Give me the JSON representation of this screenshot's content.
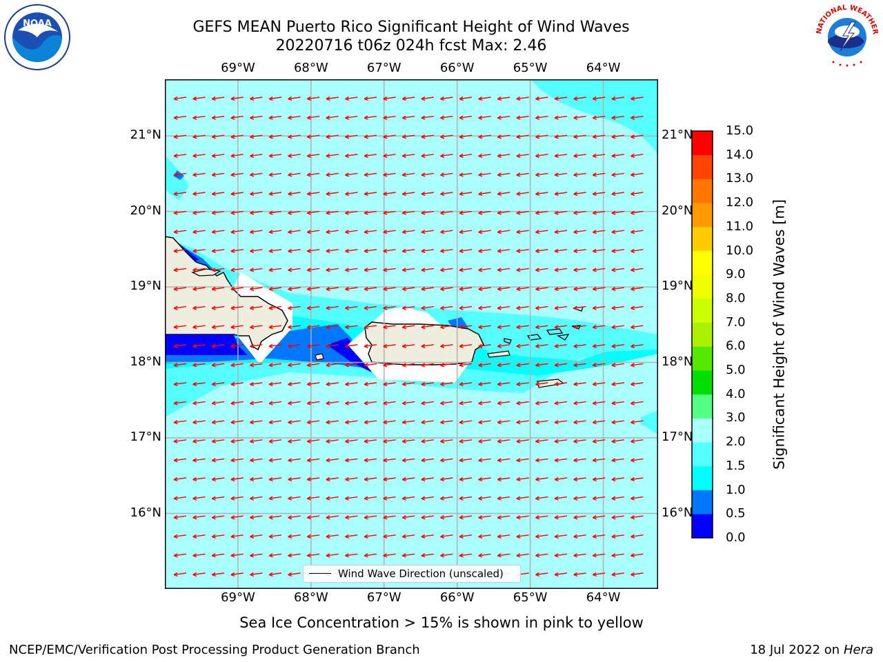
{
  "title_line1": "GEFS MEAN Puerto Rico Significant Height of Wind Waves",
  "title_line2": "20220716 t06z 024h fcst   Max: 2.46",
  "map": {
    "lon_range": [
      -70.0,
      -63.25
    ],
    "lat_range": [
      15.0,
      21.75
    ],
    "lon_labels": [
      "69°W",
      "68°W",
      "67°W",
      "66°W",
      "65°W",
      "64°W"
    ],
    "lon_values": [
      -69,
      -68,
      -67,
      -66,
      -65,
      -64
    ],
    "lat_labels": [
      "16°N",
      "17°N",
      "18°N",
      "19°N",
      "20°N",
      "21°N"
    ],
    "lat_values": [
      16,
      17,
      18,
      19,
      20,
      21
    ],
    "grid": true,
    "arrow_direction": "east-to-west",
    "arrow_color": "#ff0000",
    "land_color": "#efeddd",
    "ocean_fill_colors": [
      "#aaffff",
      "#55ffff",
      "#00ffff",
      "#0077ff",
      "#0000ff"
    ]
  },
  "legend": {
    "label": "Wind Wave Direction (unscaled)",
    "position": "bottom-center"
  },
  "colorbar": {
    "label": "Significant Height of Wind Waves [m]",
    "ticks": [
      "0.0",
      "0.5",
      "1.0",
      "1.5",
      "2.0",
      "3.0",
      "4.0",
      "5.0",
      "6.0",
      "7.0",
      "8.0",
      "9.0",
      "10.0",
      "11.0",
      "12.0",
      "13.0",
      "14.0",
      "15.0"
    ],
    "colors": [
      "#0000ff",
      "#0077ff",
      "#00ffff",
      "#55ffff",
      "#aaffff",
      "#55ff80",
      "#00dd00",
      "#55e800",
      "#aaf000",
      "#ccff00",
      "#eeff00",
      "#ffff00",
      "#ffcc00",
      "#ff9900",
      "#ff7700",
      "#ff4400",
      "#ff0000"
    ]
  },
  "subnote": "Sea Ice Concentration > 15% is shown in pink to yellow",
  "footer_left": "NCEP/EMC/Verification Post Processing Product Generation Branch",
  "footer_right_date": "18 Jul 2022 on ",
  "footer_right_host": "Hera",
  "logos": {
    "left": "noaa-logo",
    "right": "national-weather-service-logo",
    "left_seal_text": "NATIONAL OCEANIC AND ATMOSPHERIC ADMINISTRATION U.S. DEPARTMENT OF COMMERCE",
    "left_mark": "NOAA",
    "right_seal_text": "NATIONAL WEATHER SERVICE"
  }
}
